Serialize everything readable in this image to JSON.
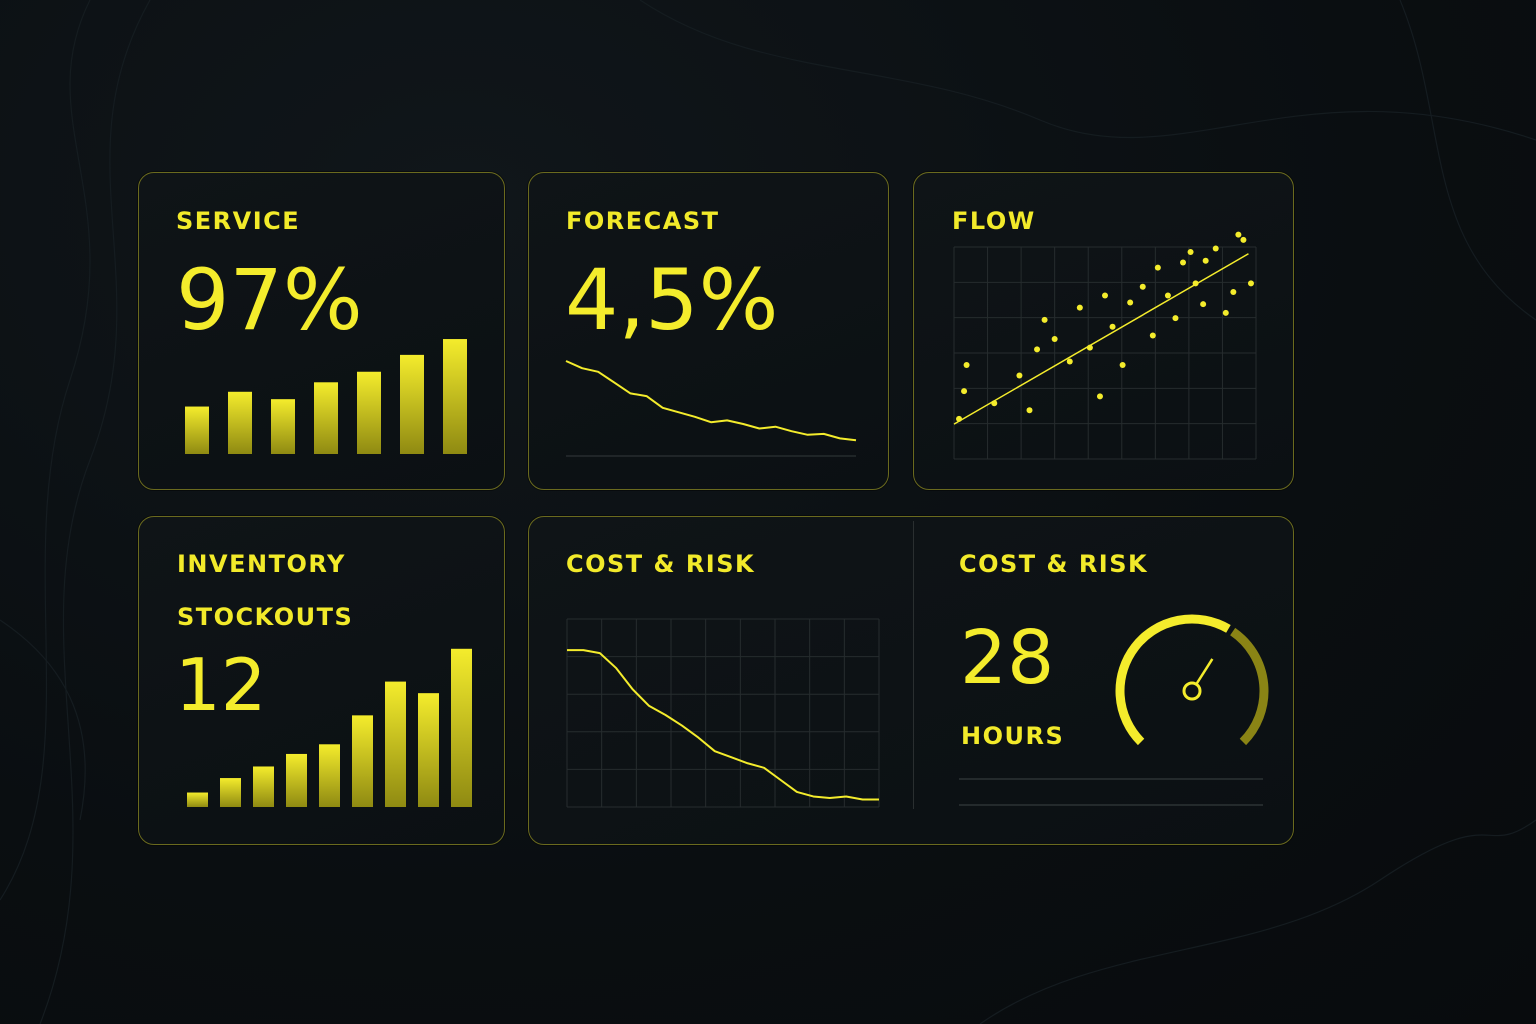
{
  "colors": {
    "accent": "#f4ec2c",
    "border": "#6a6a1e",
    "background": "#0a0e11",
    "grid": "#262c2e"
  },
  "cards": {
    "service": {
      "label": "SERVICE",
      "value": "97%"
    },
    "forecast": {
      "label": "FORECAST",
      "value": "4,5%"
    },
    "flow": {
      "label": "FLOW"
    },
    "inventory": {
      "label": "INVENTORY",
      "sublabel": "STOCKOUTS",
      "value": "12"
    },
    "cost_risk_chart": {
      "label": "COST & RISK"
    },
    "cost_risk_gauge": {
      "label": "COST & RISK",
      "value": "28",
      "unit": "HOURS"
    }
  },
  "chart_data": [
    {
      "id": "service-bars",
      "type": "bar",
      "values": [
        4.5,
        5.9,
        5.2,
        6.8,
        7.8,
        9.4,
        10.9
      ],
      "ylim": [
        0,
        11
      ]
    },
    {
      "id": "forecast-line",
      "type": "line",
      "values": [
        10,
        9.2,
        8.8,
        7.6,
        6.4,
        6.1,
        4.8,
        4.3,
        3.8,
        3.2,
        3.4,
        3.0,
        2.5,
        2.7,
        2.2,
        1.8,
        1.9,
        1.4,
        1.2
      ],
      "ylim": [
        0,
        10
      ]
    },
    {
      "id": "flow-scatter",
      "type": "scatter",
      "points": [
        [
          0.2,
          1.5
        ],
        [
          0.5,
          4.6
        ],
        [
          0.4,
          3.1
        ],
        [
          1.6,
          2.4
        ],
        [
          2.6,
          4.0
        ],
        [
          3.0,
          2.0
        ],
        [
          3.3,
          5.5
        ],
        [
          3.6,
          7.2
        ],
        [
          4.0,
          6.1
        ],
        [
          4.6,
          4.8
        ],
        [
          5.0,
          7.9
        ],
        [
          5.4,
          5.6
        ],
        [
          5.8,
          2.8
        ],
        [
          6.0,
          8.6
        ],
        [
          6.3,
          6.8
        ],
        [
          6.7,
          4.6
        ],
        [
          7.0,
          8.2
        ],
        [
          7.5,
          9.1
        ],
        [
          7.9,
          6.3
        ],
        [
          8.1,
          10.2
        ],
        [
          8.5,
          8.6
        ],
        [
          8.8,
          7.3
        ],
        [
          9.1,
          10.5
        ],
        [
          9.4,
          11.1
        ],
        [
          9.6,
          9.3
        ],
        [
          10.0,
          10.6
        ],
        [
          10.4,
          11.3
        ],
        [
          10.8,
          7.6
        ],
        [
          11.1,
          8.8
        ],
        [
          11.3,
          12.1
        ],
        [
          11.5,
          11.8
        ],
        [
          11.8,
          9.3
        ],
        [
          9.9,
          8.1
        ]
      ],
      "trend": [
        [
          0,
          1.2
        ],
        [
          11.7,
          11.0
        ]
      ],
      "xlim": [
        0,
        12
      ],
      "ylim": [
        0,
        13
      ]
    },
    {
      "id": "inventory-bars",
      "type": "bar",
      "values": [
        1.5,
        3.0,
        4.2,
        5.5,
        6.5,
        9.5,
        13.0,
        11.8,
        16.4
      ],
      "ylim": [
        0,
        17
      ]
    },
    {
      "id": "cost-risk-line",
      "type": "line",
      "values": [
        10,
        10,
        9.8,
        8.8,
        7.4,
        6.3,
        5.7,
        5.0,
        4.2,
        3.3,
        2.9,
        2.5,
        2.2,
        1.4,
        0.6,
        0.3,
        0.2,
        0.3,
        0.1,
        0.1
      ],
      "ylim": [
        0,
        11
      ]
    },
    {
      "id": "cost-risk-gauge",
      "type": "gauge",
      "value": 0.62,
      "range": [
        0,
        1
      ]
    }
  ]
}
